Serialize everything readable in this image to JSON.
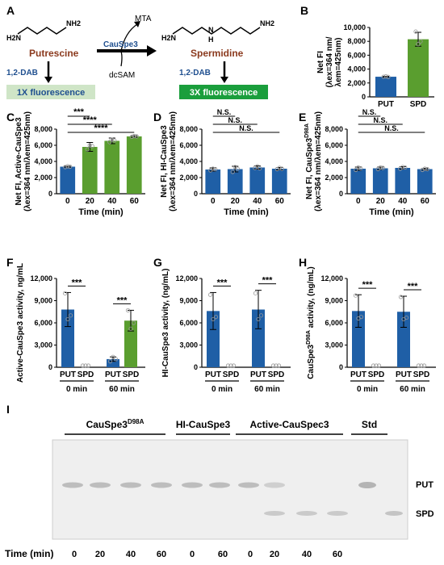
{
  "colors": {
    "blue": "#1f5fa6",
    "green": "#5a9e2f",
    "putrescine": "#8b3a1e",
    "spermidine": "#8b3a1e",
    "box1x": "#cfe5c7",
    "box3x": "#1a9e3c",
    "dab": "#1f4f8f"
  },
  "scheme": {
    "panel": "A",
    "substrate": "Putrescine",
    "enzyme": "CauSpe3",
    "byproduct": "MTA",
    "cosubstrate": "dcSAM",
    "product": "Spermidine",
    "dab_left": "1,2-DAB",
    "dab_right": "1,2-DAB",
    "fluor_left": "1X fluorescence",
    "fluor_right": "3X fluorescence",
    "nh2": "NH2",
    "h2n": "H2N",
    "nh": "N",
    "h": "H"
  },
  "fi_ylabel_line1": "Net FI",
  "fi_ylabel_line2": "(λex=364 nm/",
  "fi_ylabel_line3": "λem=425nm)",
  "time_label": "Time (min)",
  "ns": "N.S.",
  "chart_data": [
    {
      "panel": "B",
      "type": "bar",
      "categories": [
        "PUT",
        "SPD"
      ],
      "values": [
        2900,
        8300
      ],
      "points": [
        [
          2900,
          2950,
          2880
        ],
        [
          9400,
          7600,
          8000
        ]
      ],
      "errors": [
        60,
        1000
      ],
      "colors": [
        "#1f5fa6",
        "#5a9e2f"
      ],
      "ylim": [
        0,
        10000
      ],
      "yticks": [
        "0",
        "2,000",
        "4,000",
        "6,000",
        "8,000",
        "10,000"
      ]
    },
    {
      "panel": "C",
      "type": "bar",
      "categories": [
        "0",
        "20",
        "40",
        "60"
      ],
      "values": [
        3350,
        5800,
        6550,
        7100
      ],
      "points": [
        [
          3300,
          3400,
          3350
        ],
        [
          5500,
          6000,
          5900
        ],
        [
          6400,
          6700,
          6600
        ],
        [
          7050,
          7150,
          7100
        ]
      ],
      "errors": [
        60,
        550,
        350,
        100
      ],
      "colors": [
        "#1f5fa6",
        "#5a9e2f",
        "#5a9e2f",
        "#5a9e2f"
      ],
      "ylim": [
        0,
        8000
      ],
      "yticks": [
        "0",
        "2,000",
        "4,000",
        "6,000",
        "8,000"
      ],
      "ylabel": "Net FI, Active-CauSpe3",
      "sig": [
        "***",
        "****",
        "****"
      ]
    },
    {
      "panel": "D",
      "type": "bar",
      "categories": [
        "0",
        "20",
        "40",
        "60"
      ],
      "values": [
        3000,
        3050,
        3250,
        3100
      ],
      "points": [
        [
          2900,
          3100,
          3050
        ],
        [
          2700,
          3300,
          3100
        ],
        [
          3200,
          3400,
          3150
        ],
        [
          3050,
          3200,
          3100
        ]
      ],
      "errors": [
        200,
        350,
        200,
        150
      ],
      "colors": [
        "#1f5fa6",
        "#1f5fa6",
        "#1f5fa6",
        "#1f5fa6"
      ],
      "ylim": [
        0,
        8000
      ],
      "yticks": [
        "0",
        "2,000",
        "4,000",
        "6,000",
        "8,000"
      ],
      "ylabel": "Net FI, HI-CauSpe3"
    },
    {
      "panel": "E",
      "type": "bar",
      "categories": [
        "0",
        "20",
        "40",
        "60"
      ],
      "values": [
        3100,
        3150,
        3200,
        3050
      ],
      "points": [
        [
          2950,
          3250,
          3150
        ],
        [
          3050,
          3250,
          3200
        ],
        [
          3100,
          3300,
          3250
        ],
        [
          2950,
          3100,
          3050
        ]
      ],
      "errors": [
        200,
        150,
        150,
        100
      ],
      "colors": [
        "#1f5fa6",
        "#1f5fa6",
        "#1f5fa6",
        "#1f5fa6"
      ],
      "ylim": [
        0,
        8000
      ],
      "yticks": [
        "0",
        "2,000",
        "4,000",
        "6,000",
        "8,000"
      ],
      "ylabel": "Net FI, CauSpe3",
      "ylabel_sup": "D98A"
    },
    {
      "panel": "F",
      "type": "bar",
      "categories": [
        "PUT",
        "SPD",
        "PUT",
        "SPD"
      ],
      "groups": [
        "0 min",
        "60 min"
      ],
      "values": [
        7800,
        0,
        1100,
        6300
      ],
      "points": [
        [
          10000,
          6500,
          7000
        ],
        [
          0,
          0,
          0
        ],
        [
          800,
          1400,
          1100
        ],
        [
          7700,
          5200,
          6000
        ]
      ],
      "errors": [
        2300,
        0,
        300,
        1400
      ],
      "colors": [
        "#1f5fa6",
        "#5a9e2f",
        "#1f5fa6",
        "#5a9e2f"
      ],
      "ylim": [
        0,
        12000
      ],
      "yticks": [
        "0",
        "3,000",
        "6,000",
        "9,000",
        "12,000"
      ],
      "ylabel": "Active-CauSpe3 activity, ng/mL",
      "sig": [
        "***",
        "***"
      ]
    },
    {
      "panel": "G",
      "type": "bar",
      "categories": [
        "PUT",
        "SPD",
        "PUT",
        "SPD"
      ],
      "groups": [
        "0 min",
        "60 min"
      ],
      "values": [
        7600,
        0,
        7800,
        0
      ],
      "points": [
        [
          9800,
          6500,
          6800
        ],
        [
          0,
          0,
          0
        ],
        [
          10000,
          6500,
          7000
        ],
        [
          0,
          0,
          0
        ]
      ],
      "errors": [
        2500,
        0,
        2600,
        0
      ],
      "colors": [
        "#1f5fa6",
        "#1f5fa6",
        "#1f5fa6",
        "#1f5fa6"
      ],
      "ylim": [
        0,
        12000
      ],
      "yticks": [
        "0",
        "3,000",
        "6,000",
        "9,000",
        "12,000"
      ],
      "ylabel": "HI-CauSpe3 activity, (ng/mL)",
      "sig": [
        "***",
        "***"
      ]
    },
    {
      "panel": "H",
      "type": "bar",
      "categories": [
        "PUT",
        "SPD",
        "PUT",
        "SPD"
      ],
      "groups": [
        "0 min",
        "60 min"
      ],
      "values": [
        7600,
        0,
        7500,
        0
      ],
      "points": [
        [
          9700,
          6600,
          6800
        ],
        [
          0,
          0,
          0
        ],
        [
          9500,
          6500,
          6700
        ],
        [
          0,
          0,
          0
        ]
      ],
      "errors": [
        2200,
        0,
        2100,
        0
      ],
      "colors": [
        "#1f5fa6",
        "#1f5fa6",
        "#1f5fa6",
        "#1f5fa6"
      ],
      "ylim": [
        0,
        12000
      ],
      "yticks": [
        "0",
        "3,000",
        "6,000",
        "9,000",
        "12,000"
      ],
      "ylabel": "CauSpe3",
      "ylabel_sup": "D98A",
      "ylabel_tail": " activity, (ng/mL)",
      "sig": [
        "***",
        "***"
      ]
    }
  ],
  "gel": {
    "panel": "I",
    "groups": [
      {
        "label": "CauSpe3",
        "sup": "D98A"
      },
      {
        "label": "HI-CauSpe3",
        "sup": ""
      },
      {
        "label": "Active-CauSpec3",
        "sup": ""
      },
      {
        "label": "Std",
        "sup": ""
      }
    ],
    "right_labels": [
      "PUT",
      "SPD"
    ],
    "time_label": "Time (min)",
    "times": [
      "0",
      "20",
      "40",
      "60",
      "0",
      "60",
      "0",
      "20",
      "40",
      "60"
    ]
  }
}
